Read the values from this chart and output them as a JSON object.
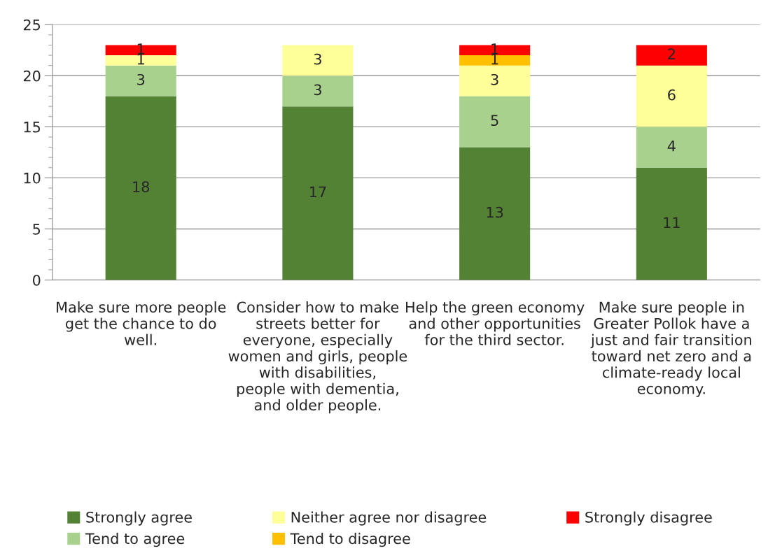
{
  "chart_data": {
    "type": "bar",
    "stacked": true,
    "categories": [
      "Make sure more people get the chance to do well.",
      "Consider how to make streets better for everyone, especially women and girls, people with disabilities, people with dementia, and older people.",
      "Help the green economy and other opportunities for the third sector.",
      "Make sure people in Greater Pollok have a just and fair transition toward net zero and a climate-ready local economy."
    ],
    "series": [
      {
        "name": "Strongly agree",
        "color": "#548235",
        "values": [
          18,
          17,
          13,
          11
        ]
      },
      {
        "name": "Tend to agree",
        "color": "#a9d18e",
        "values": [
          3,
          3,
          5,
          4
        ]
      },
      {
        "name": "Neither agree nor disagree",
        "color": "#ffff99",
        "values": [
          1,
          3,
          3,
          6
        ]
      },
      {
        "name": "Tend to disagree",
        "color": "#ffc000",
        "values": [
          null,
          null,
          1,
          null
        ]
      },
      {
        "name": "Strongly disagree",
        "color": "#ff0000",
        "values": [
          1,
          null,
          1,
          2
        ]
      }
    ],
    "ylim": [
      0,
      25
    ],
    "yticks": [
      0,
      5,
      10,
      15,
      20,
      25
    ],
    "grid": "y",
    "legend": "bottom",
    "data_labels": true
  }
}
